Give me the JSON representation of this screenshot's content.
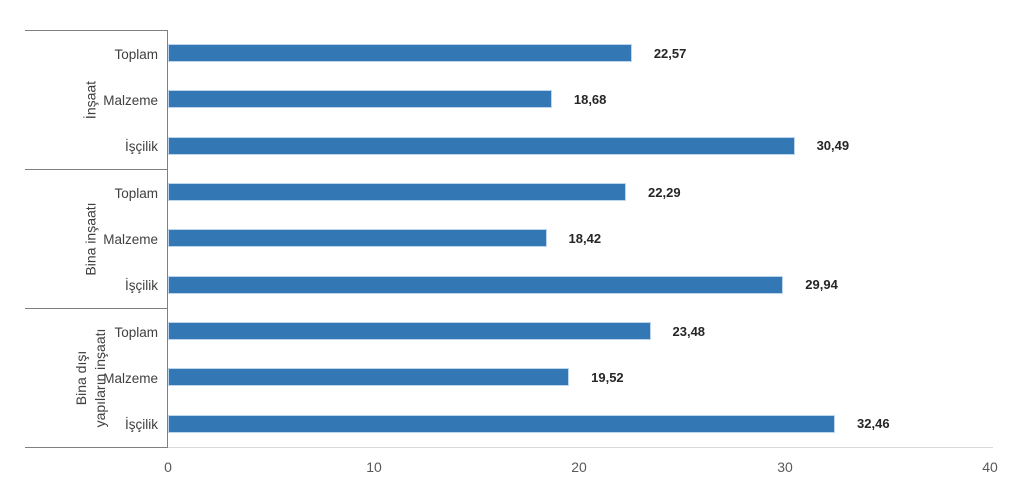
{
  "chart_data": {
    "type": "bar",
    "orientation": "horizontal",
    "title": "",
    "xlabel": "",
    "ylabel": "",
    "xlim": [
      0,
      40
    ],
    "xtick_labels": [
      "0",
      "10",
      "20",
      "30",
      "40"
    ],
    "grid": false,
    "legend": false,
    "bar_color": "#3377B4",
    "bar_border_color": "#BCD6EC",
    "axis_line_dark_color": "#808080",
    "axis_line_light_color": "#D9D9D9",
    "label_color": "#404040",
    "value_label_color": "#262626",
    "groups": [
      {
        "label": "İnşaat",
        "label_lines": [
          "İnşaat"
        ],
        "bars": [
          {
            "label": "Toplam",
            "value": 22.57,
            "display": "22,57"
          },
          {
            "label": "Malzeme",
            "value": 18.68,
            "display": "18,68"
          },
          {
            "label": "İşçilik",
            "value": 30.49,
            "display": "30,49"
          }
        ]
      },
      {
        "label": "Bina inşaatı",
        "label_lines": [
          "Bina inşaatı"
        ],
        "bars": [
          {
            "label": "Toplam",
            "value": 22.29,
            "display": "22,29"
          },
          {
            "label": "Malzeme",
            "value": 18.42,
            "display": "18,42"
          },
          {
            "label": "İşçilik",
            "value": 29.94,
            "display": "29,94"
          }
        ]
      },
      {
        "label": "Bina dışı yapıların inşaatı",
        "label_lines": [
          "Bina dışı",
          "yapıların inşaatı"
        ],
        "bars": [
          {
            "label": "Toplam",
            "value": 23.48,
            "display": "23,48"
          },
          {
            "label": "Malzeme",
            "value": 19.52,
            "display": "19,52"
          },
          {
            "label": "İşçilik",
            "value": 32.46,
            "display": "32,46"
          }
        ]
      }
    ]
  }
}
